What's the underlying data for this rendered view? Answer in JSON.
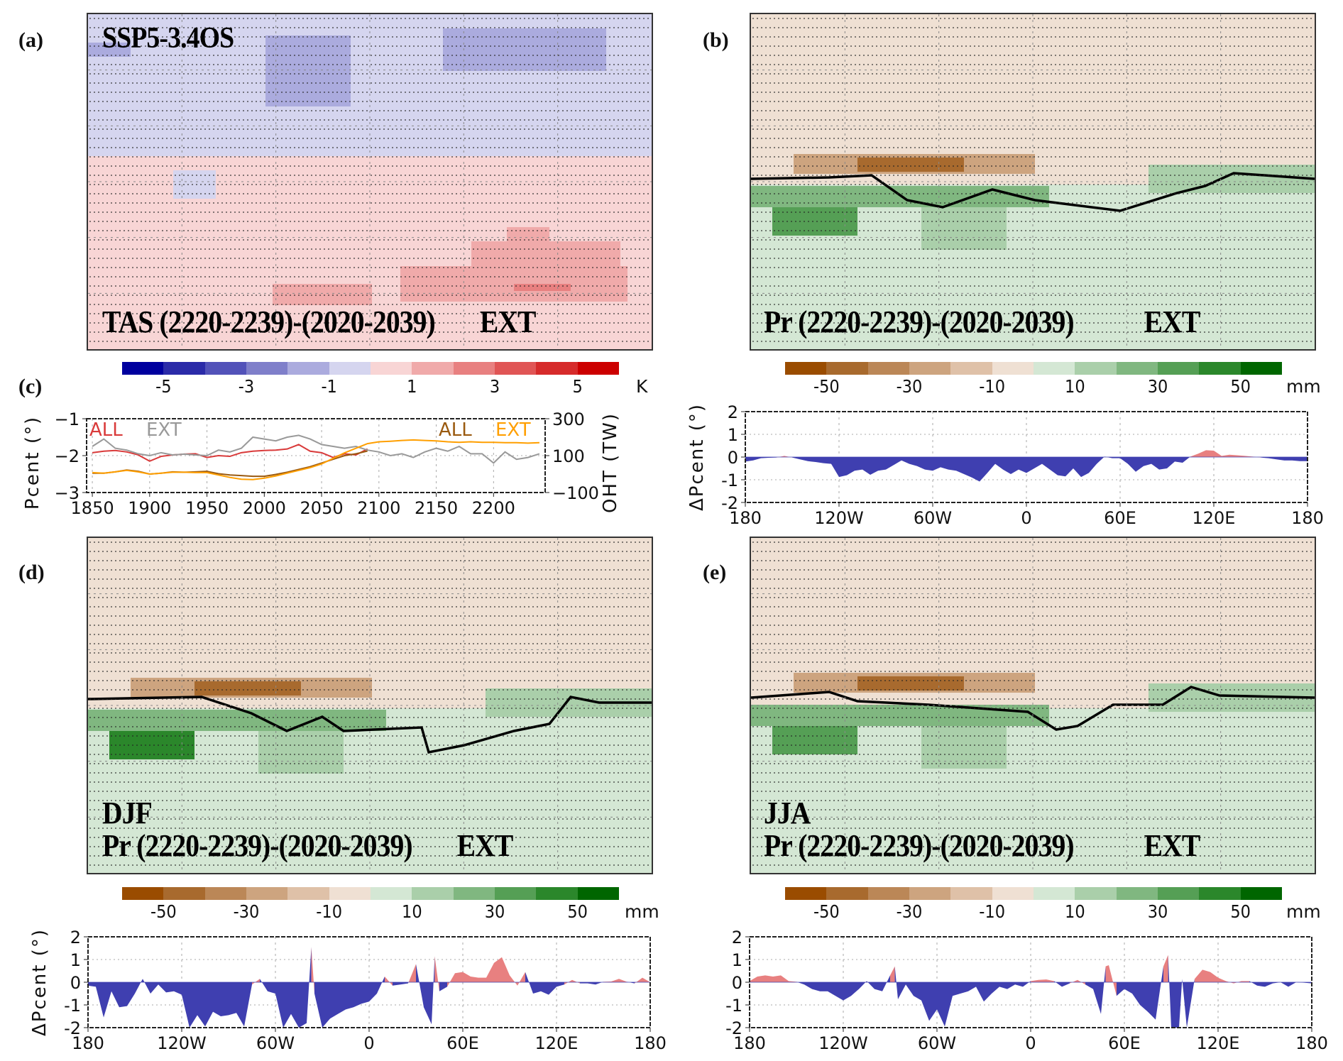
{
  "panel_labels": [
    "(a)",
    "(b)",
    "(c)",
    "(d)",
    "(e)"
  ],
  "colorbars": {
    "tas": {
      "colors": [
        "#00009e",
        "#2b2ba8",
        "#5252b9",
        "#7f7fca",
        "#ababde",
        "#d5d5ef",
        "#f8d5d5",
        "#f0aaaa",
        "#e88080",
        "#e05555",
        "#d62b2b",
        "#cc0000"
      ],
      "ticks": [
        "-5",
        "-3",
        "-1",
        "1",
        "3",
        "5"
      ],
      "unit": "K"
    },
    "pr": {
      "colors": [
        "#9a4c00",
        "#a86a2e",
        "#bb8757",
        "#cda47f",
        "#dfc1a8",
        "#efe0d3",
        "#d4e7d4",
        "#aacfaa",
        "#80b780",
        "#559f55",
        "#2b872b",
        "#006600"
      ],
      "ticks": [
        "-50",
        "-30",
        "-10",
        "10",
        "30",
        "50"
      ],
      "unit": "mm"
    }
  },
  "maps": {
    "a": {
      "scenario": "SSP5-3.4OS",
      "title": "TAS (2220-2239)-(2020-2039)",
      "tag": "EXT",
      "variable": "TAS",
      "unit": "K"
    },
    "b": {
      "title": "Pr (2220-2239)-(2020-2039)",
      "tag": "EXT",
      "variable": "Pr",
      "unit": "mm"
    },
    "d": {
      "season": "DJF",
      "title": "Pr (2220-2239)-(2020-2039)",
      "tag": "EXT",
      "variable": "Pr",
      "unit": "mm"
    },
    "e": {
      "season": "JJA",
      "title": "Pr (2220-2239)-(2020-2039)",
      "tag": "EXT",
      "variable": "Pr",
      "unit": "mm"
    }
  },
  "chart_data": [
    {
      "id": "c",
      "type": "line",
      "title": "",
      "xlabel": "",
      "ylabel": "Pcent (°)",
      "y2label": "OHT (TW)",
      "xlim": [
        1845,
        2245
      ],
      "ylim": [
        -3,
        -1
      ],
      "y2lim": [
        -100,
        300
      ],
      "xticks": [
        "1850",
        "1900",
        "1950",
        "2000",
        "2050",
        "2100",
        "2150",
        "2200"
      ],
      "yticks": [
        "-1",
        "-2",
        "-3"
      ],
      "y2ticks": [
        "300",
        "100",
        "-100"
      ],
      "grid": true,
      "legend_left": [
        {
          "label": "ALL",
          "color": "#d93a3a"
        },
        {
          "label": "EXT",
          "color": "#999999"
        }
      ],
      "legend_right": [
        {
          "label": "ALL",
          "color": "#9a5a10"
        },
        {
          "label": "EXT",
          "color": "#ff9f00"
        }
      ],
      "x": [
        1850,
        1860,
        1870,
        1880,
        1890,
        1900,
        1910,
        1920,
        1930,
        1940,
        1950,
        1960,
        1970,
        1980,
        1990,
        2000,
        2010,
        2020,
        2030,
        2040,
        2050,
        2060,
        2070,
        2080,
        2090,
        2100,
        2110,
        2120,
        2130,
        2140,
        2150,
        2160,
        2170,
        2180,
        2190,
        2200,
        2210,
        2220,
        2230,
        2240
      ],
      "series": [
        {
          "name": "Pcent ALL",
          "axis": "left",
          "color": "#d93a3a",
          "values": [
            -1.92,
            -1.88,
            -1.86,
            -1.9,
            -1.98,
            -2.15,
            -2.02,
            -1.98,
            -1.96,
            -1.95,
            -2.05,
            -2.0,
            -2.02,
            -1.92,
            -1.88,
            -1.86,
            -1.85,
            -1.82,
            -1.7,
            -1.88,
            -1.92,
            -2.05,
            -1.95,
            -1.98,
            -1.82,
            null,
            null,
            null,
            null,
            null,
            null,
            null,
            null,
            null,
            null,
            null,
            null,
            null,
            null,
            null
          ]
        },
        {
          "name": "Pcent EXT",
          "axis": "left",
          "color": "#999999",
          "values": [
            -1.75,
            -1.55,
            -1.8,
            -1.85,
            -1.95,
            -2.0,
            -1.92,
            -1.98,
            -1.96,
            -1.98,
            -2.0,
            -1.85,
            -1.9,
            -1.8,
            -1.5,
            -1.55,
            -1.6,
            -1.5,
            -1.45,
            -1.55,
            -1.7,
            -1.75,
            -1.8,
            -1.75,
            -1.85,
            -1.9,
            -2.0,
            -1.95,
            -2.05,
            -1.9,
            -1.8,
            -1.88,
            -1.75,
            -1.95,
            -1.95,
            -2.2,
            -1.9,
            -2.1,
            -2.05,
            -1.95
          ]
        },
        {
          "name": "OHT ALL",
          "axis": "right",
          "color": "#9a5a10",
          "values": [
            5,
            5,
            12,
            22,
            15,
            0,
            5,
            12,
            10,
            12,
            15,
            2,
            -5,
            -8,
            -12,
            -12,
            -2,
            10,
            25,
            40,
            60,
            80,
            100,
            110,
            125,
            null,
            null,
            null,
            null,
            null,
            null,
            null,
            null,
            null,
            null,
            null,
            null,
            null,
            null,
            null
          ]
        },
        {
          "name": "OHT EXT",
          "axis": "right",
          "color": "#ff9f00",
          "values": [
            8,
            5,
            12,
            20,
            12,
            0,
            5,
            10,
            10,
            8,
            8,
            -5,
            -18,
            -28,
            -30,
            -22,
            -10,
            5,
            20,
            35,
            55,
            85,
            115,
            140,
            165,
            175,
            178,
            182,
            185,
            182,
            180,
            175,
            172,
            175,
            172,
            172,
            170,
            170,
            168,
            170
          ]
        }
      ]
    },
    {
      "id": "b-lower",
      "type": "area",
      "title": "",
      "xlabel": "",
      "ylabel": "ΔPcent (°)",
      "xlim": [
        -180,
        180
      ],
      "ylim": [
        -2,
        2
      ],
      "xticks": [
        "180",
        "120W",
        "60W",
        "0",
        "60E",
        "120E",
        "180"
      ],
      "yticks": [
        "2",
        "1",
        "0",
        "-1",
        "-2"
      ],
      "grid": true,
      "positive_color": "#e88080",
      "negative_color": "#3f3fb0",
      "x": [
        -180,
        -175,
        -170,
        -165,
        -160,
        -155,
        -150,
        -145,
        -140,
        -135,
        -130,
        -125,
        -120,
        -115,
        -110,
        -105,
        -100,
        -95,
        -90,
        -85,
        -80,
        -75,
        -70,
        -65,
        -60,
        -55,
        -50,
        -45,
        -40,
        -35,
        -30,
        -25,
        -20,
        -15,
        -10,
        -5,
        0,
        5,
        10,
        15,
        20,
        25,
        30,
        35,
        40,
        45,
        50,
        55,
        60,
        65,
        70,
        75,
        80,
        85,
        90,
        95,
        100,
        105,
        110,
        115,
        120,
        125,
        130,
        135,
        140,
        145,
        150,
        155,
        160,
        165,
        170,
        175,
        180
      ],
      "values": [
        -0.2,
        -0.15,
        -0.05,
        -0.03,
        -0.02,
        0.05,
        -0.02,
        -0.1,
        -0.18,
        -0.22,
        -0.27,
        -0.3,
        -0.88,
        -0.8,
        -0.6,
        -0.55,
        -0.78,
        -0.6,
        -0.55,
        -0.35,
        -0.15,
        -0.3,
        -0.4,
        -0.55,
        -0.6,
        -0.45,
        -0.55,
        -0.6,
        -0.75,
        -0.9,
        -1.08,
        -0.7,
        -0.3,
        -0.55,
        -0.75,
        -0.55,
        -0.7,
        -0.5,
        -0.3,
        -0.55,
        -0.8,
        -0.85,
        -0.5,
        -0.88,
        -0.7,
        -0.3,
        0.02,
        -0.05,
        -0.05,
        -0.3,
        -0.65,
        -0.4,
        -0.3,
        -0.55,
        -0.5,
        -0.2,
        -0.25,
        0.02,
        0.15,
        0.3,
        0.28,
        0.05,
        0.1,
        0.08,
        0.05,
        0.02,
        -0.02,
        -0.05,
        -0.1,
        -0.15,
        -0.15,
        -0.18,
        -0.18
      ]
    },
    {
      "id": "d-lower",
      "type": "area",
      "title": "",
      "xlabel": "",
      "ylabel": "ΔPcent (°)",
      "xlim": [
        -180,
        180
      ],
      "ylim": [
        -2,
        2
      ],
      "xticks": [
        "180",
        "120W",
        "60W",
        "0",
        "60E",
        "120E",
        "180"
      ],
      "yticks": [
        "2",
        "1",
        "0",
        "-1",
        "-2"
      ],
      "grid": true,
      "positive_color": "#e88080",
      "negative_color": "#3f3fb0",
      "x": [
        -180,
        -175,
        -170,
        -165,
        -160,
        -155,
        -150,
        -145,
        -140,
        -135,
        -130,
        -125,
        -120,
        -115,
        -110,
        -105,
        -100,
        -95,
        -90,
        -85,
        -80,
        -75,
        -70,
        -65,
        -60,
        -55,
        -50,
        -45,
        -40,
        -37,
        -35,
        -30,
        -25,
        -20,
        -15,
        -10,
        -5,
        0,
        5,
        10,
        15,
        20,
        25,
        30,
        35,
        40,
        42,
        45,
        50,
        55,
        60,
        65,
        70,
        75,
        80,
        85,
        90,
        95,
        100,
        105,
        110,
        115,
        120,
        125,
        130,
        135,
        140,
        145,
        150,
        155,
        160,
        165,
        170,
        175,
        180
      ],
      "values": [
        -0.15,
        -0.2,
        -1.55,
        -0.4,
        -1.1,
        -1.05,
        -0.5,
        0.15,
        -0.5,
        -0.1,
        -0.45,
        -0.4,
        -0.55,
        -2.0,
        -1.45,
        -1.95,
        -1.3,
        -1.5,
        -1.45,
        -1.35,
        -1.95,
        -0.1,
        0.15,
        -0.4,
        -0.5,
        -2.0,
        -1.4,
        -2.0,
        -1.8,
        1.55,
        -0.5,
        -2.0,
        -1.6,
        -1.4,
        -1.2,
        -1.1,
        -0.95,
        -0.85,
        -0.5,
        0.25,
        -0.15,
        -0.1,
        -0.05,
        0.8,
        -1.1,
        -1.85,
        1.15,
        -0.4,
        -0.2,
        0.4,
        0.45,
        0.25,
        0.2,
        0.2,
        0.85,
        1.1,
        0.3,
        -0.15,
        0.45,
        -0.5,
        -0.4,
        -0.55,
        -0.2,
        -0.1,
        0.1,
        -0.05,
        -0.05,
        -0.1,
        0.02,
        0.03,
        0.15,
        0.02,
        -0.05,
        0.2,
        0.0
      ]
    },
    {
      "id": "e-lower",
      "type": "area",
      "title": "",
      "xlabel": "",
      "ylabel": "",
      "xlim": [
        -180,
        180
      ],
      "ylim": [
        -2,
        2
      ],
      "xticks": [
        "180",
        "120W",
        "60W",
        "0",
        "60E",
        "120E",
        "180"
      ],
      "yticks": [
        "2",
        "1",
        "0",
        "-1",
        "-2"
      ],
      "grid": true,
      "positive_color": "#e88080",
      "negative_color": "#3f3fb0",
      "x": [
        -180,
        -175,
        -170,
        -165,
        -160,
        -155,
        -150,
        -145,
        -140,
        -135,
        -130,
        -125,
        -120,
        -115,
        -110,
        -105,
        -100,
        -95,
        -90,
        -87,
        -85,
        -80,
        -75,
        -70,
        -65,
        -60,
        -55,
        -50,
        -45,
        -40,
        -35,
        -30,
        -25,
        -20,
        -15,
        -10,
        -5,
        0,
        5,
        10,
        15,
        20,
        25,
        30,
        35,
        40,
        45,
        48,
        50,
        55,
        60,
        65,
        70,
        75,
        80,
        85,
        88,
        90,
        95,
        97,
        100,
        105,
        110,
        115,
        120,
        125,
        130,
        135,
        140,
        145,
        150,
        155,
        160,
        165,
        170,
        175,
        180
      ],
      "values": [
        0.05,
        0.25,
        0.3,
        0.25,
        0.3,
        0.05,
        0.02,
        -0.1,
        -0.3,
        -0.4,
        -0.4,
        -0.6,
        -0.8,
        -0.6,
        -0.3,
        0.05,
        -0.3,
        -0.4,
        0.3,
        0.7,
        -0.75,
        -0.1,
        -0.6,
        -0.8,
        -1.7,
        -1.2,
        -1.95,
        -0.6,
        -0.5,
        -0.4,
        -0.2,
        -0.85,
        -0.5,
        -0.2,
        -0.3,
        -0.1,
        -0.2,
        0.05,
        0.1,
        0.12,
        0.05,
        -0.2,
        -0.05,
        0.1,
        -0.1,
        -0.3,
        -1.4,
        0.7,
        0.75,
        -0.6,
        -0.3,
        -0.5,
        -1.0,
        -1.3,
        -1.65,
        0.7,
        1.2,
        -2.0,
        -2.0,
        0.15,
        -2.0,
        0.15,
        0.55,
        0.45,
        0.2,
        0.05,
        -0.05,
        0.05,
        0.05,
        -0.15,
        -0.2,
        -0.05,
        0.0,
        -0.2,
        0.0,
        -0.02,
        -0.05
      ]
    }
  ]
}
